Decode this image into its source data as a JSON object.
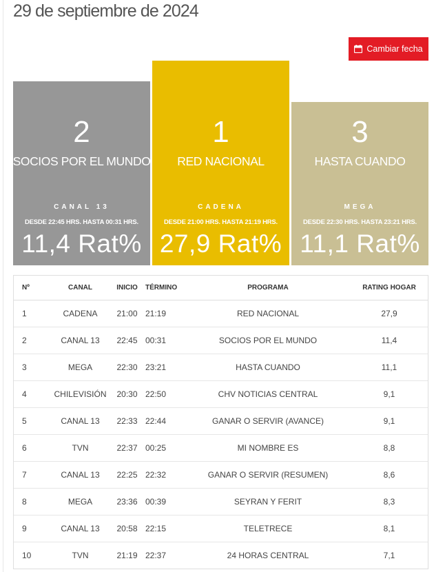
{
  "date_title": "29 de septiembre de 2024",
  "change_date_button": {
    "label": "Cambiar fecha",
    "icon": "calendar-icon"
  },
  "colors": {
    "first": "#e9bd00",
    "second": "#979797",
    "third": "#c9bf94",
    "button": "#e31c25"
  },
  "podium": {
    "first": {
      "position": "1",
      "program": "RED NACIONAL",
      "channel": "CADENA",
      "schedule": "DESDE 21:00 HRS. HASTA 21:19 HRS.",
      "rating": "27,9 Rat%"
    },
    "second": {
      "position": "2",
      "program": "SOCIOS POR EL MUNDO",
      "channel": "CANAL 13",
      "schedule": "DESDE 22:45 HRS. HASTA 00:31 HRS.",
      "rating": "11,4 Rat%"
    },
    "third": {
      "position": "3",
      "program": "HASTA CUANDO",
      "channel": "MEGA",
      "schedule": "DESDE 22:30 HRS. HASTA 23:21 HRS.",
      "rating": "11,1 Rat%"
    }
  },
  "table": {
    "headers": {
      "num": "Nº",
      "canal": "CANAL",
      "inicio": "INICIO",
      "termino": "TÉRMINO",
      "programa": "PROGRAMA",
      "rating": "RATING HOGAR"
    },
    "rows": [
      {
        "num": "1",
        "canal": "CADENA",
        "inicio": "21:00",
        "termino": "21:19",
        "programa": "RED NACIONAL",
        "rating": "27,9"
      },
      {
        "num": "2",
        "canal": "CANAL 13",
        "inicio": "22:45",
        "termino": "00:31",
        "programa": "SOCIOS POR EL MUNDO",
        "rating": "11,4"
      },
      {
        "num": "3",
        "canal": "MEGA",
        "inicio": "22:30",
        "termino": "23:21",
        "programa": "HASTA CUANDO",
        "rating": "11,1"
      },
      {
        "num": "4",
        "canal": "CHILEVISIÓN",
        "inicio": "20:30",
        "termino": "22:50",
        "programa": "CHV NOTICIAS CENTRAL",
        "rating": "9,1"
      },
      {
        "num": "5",
        "canal": "CANAL 13",
        "inicio": "22:33",
        "termino": "22:44",
        "programa": "GANAR O SERVIR (AVANCE)",
        "rating": "9,1"
      },
      {
        "num": "6",
        "canal": "TVN",
        "inicio": "22:37",
        "termino": "00:25",
        "programa": "MI NOMBRE ES",
        "rating": "8,8"
      },
      {
        "num": "7",
        "canal": "CANAL 13",
        "inicio": "22:25",
        "termino": "22:32",
        "programa": "GANAR O SERVIR (RESUMEN)",
        "rating": "8,6"
      },
      {
        "num": "8",
        "canal": "MEGA",
        "inicio": "23:36",
        "termino": "00:39",
        "programa": "SEYRAN Y FERIT",
        "rating": "8,3"
      },
      {
        "num": "9",
        "canal": "CANAL 13",
        "inicio": "20:58",
        "termino": "22:15",
        "programa": "TELETRECE",
        "rating": "8,1"
      },
      {
        "num": "10",
        "canal": "TVN",
        "inicio": "21:19",
        "termino": "22:37",
        "programa": "24 HORAS CENTRAL",
        "rating": "7,1"
      }
    ]
  }
}
